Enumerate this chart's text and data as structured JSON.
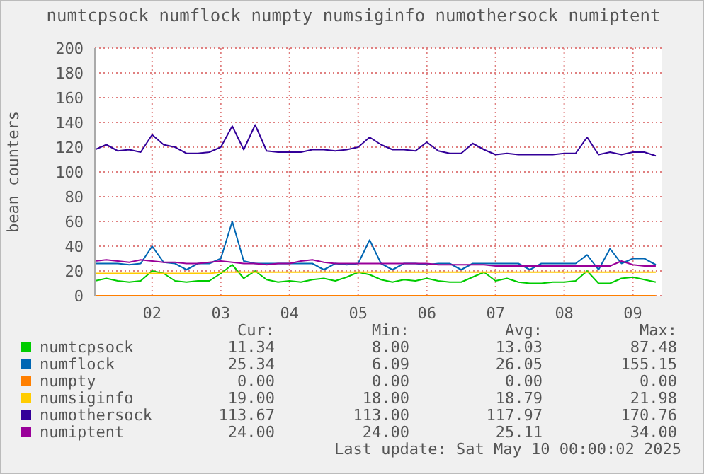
{
  "chart_data": {
    "type": "line",
    "title": "numtcpsock numflock numpty numsiginfo numothersock numiptent",
    "ylabel": "bean counters",
    "x": [
      "2025-05-01T04:00",
      "2025-05-01T08:00",
      "2025-05-01T12:00",
      "2025-05-01T16:00",
      "2025-05-01T20:00",
      "2025-05-02T00:00",
      "2025-05-02T04:00",
      "2025-05-02T08:00",
      "2025-05-02T12:00",
      "2025-05-02T16:00",
      "2025-05-02T20:00",
      "2025-05-03T00:00",
      "2025-05-03T04:00",
      "2025-05-03T08:00",
      "2025-05-03T12:00",
      "2025-05-03T16:00",
      "2025-05-03T20:00",
      "2025-05-04T00:00",
      "2025-05-04T04:00",
      "2025-05-04T08:00",
      "2025-05-04T12:00",
      "2025-05-04T16:00",
      "2025-05-04T20:00",
      "2025-05-05T00:00",
      "2025-05-05T04:00",
      "2025-05-05T08:00",
      "2025-05-05T12:00",
      "2025-05-05T16:00",
      "2025-05-05T20:00",
      "2025-05-06T00:00",
      "2025-05-06T04:00",
      "2025-05-06T08:00",
      "2025-05-06T12:00",
      "2025-05-06T16:00",
      "2025-05-06T20:00",
      "2025-05-07T00:00",
      "2025-05-07T04:00",
      "2025-05-07T08:00",
      "2025-05-07T12:00",
      "2025-05-07T16:00",
      "2025-05-07T20:00",
      "2025-05-08T00:00",
      "2025-05-08T04:00",
      "2025-05-08T08:00",
      "2025-05-08T12:00",
      "2025-05-08T16:00",
      "2025-05-08T20:00",
      "2025-05-09T00:00",
      "2025-05-09T04:00",
      "2025-05-09T08:00"
    ],
    "series": [
      {
        "name": "numtcpsock",
        "color": "#00cc00",
        "values": [
          12,
          14,
          12,
          11,
          12,
          20,
          18,
          12,
          11,
          12,
          12,
          18,
          25,
          14,
          20,
          13,
          11,
          12,
          11,
          13,
          14,
          12,
          15,
          19,
          17,
          13,
          11,
          13,
          12,
          14,
          12,
          11,
          11,
          15,
          19,
          12,
          14,
          11,
          10,
          10,
          11,
          11,
          12,
          20,
          10,
          10,
          14,
          15,
          13,
          11
        ]
      },
      {
        "name": "numflock",
        "color": "#0066b3",
        "values": [
          26,
          26,
          26,
          25,
          26,
          40,
          27,
          26,
          21,
          26,
          26,
          30,
          60,
          28,
          26,
          26,
          26,
          26,
          26,
          26,
          21,
          26,
          25,
          26,
          45,
          26,
          21,
          26,
          26,
          25,
          26,
          26,
          21,
          26,
          26,
          26,
          26,
          26,
          21,
          26,
          26,
          26,
          26,
          33,
          21,
          38,
          26,
          30,
          30,
          25
        ]
      },
      {
        "name": "numpty",
        "color": "#ff7f00",
        "values": [
          0,
          0,
          0,
          0,
          0,
          0,
          0,
          0,
          0,
          0,
          0,
          0,
          0,
          0,
          0,
          0,
          0,
          0,
          0,
          0,
          0,
          0,
          0,
          0,
          0,
          0,
          0,
          0,
          0,
          0,
          0,
          0,
          0,
          0,
          0,
          0,
          0,
          0,
          0,
          0,
          0,
          0,
          0,
          0,
          0,
          0,
          0,
          0,
          0,
          0
        ]
      },
      {
        "name": "numsiginfo",
        "color": "#ffcc00",
        "values": [
          18,
          18,
          18,
          18,
          18,
          18,
          18,
          18,
          18,
          18,
          18,
          19,
          19,
          19,
          19,
          19,
          19,
          19,
          19,
          19,
          19,
          19,
          19,
          19,
          19,
          19,
          19,
          19,
          19,
          19,
          19,
          19,
          19,
          19,
          19,
          19,
          19,
          19,
          19,
          19,
          19,
          19,
          19,
          19,
          19,
          19,
          19,
          19,
          19,
          19
        ]
      },
      {
        "name": "numothersock",
        "color": "#330099",
        "values": [
          118,
          122,
          117,
          118,
          116,
          130,
          122,
          120,
          115,
          115,
          116,
          120,
          137,
          118,
          138,
          117,
          116,
          116,
          116,
          118,
          118,
          117,
          118,
          120,
          128,
          122,
          118,
          118,
          117,
          124,
          117,
          115,
          115,
          123,
          118,
          114,
          115,
          114,
          114,
          114,
          114,
          115,
          115,
          128,
          114,
          116,
          114,
          116,
          116,
          113
        ]
      },
      {
        "name": "numiptent",
        "color": "#990099",
        "values": [
          28,
          29,
          28,
          27,
          29,
          28,
          27,
          27,
          26,
          26,
          27,
          28,
          27,
          26,
          26,
          25,
          26,
          26,
          28,
          29,
          27,
          26,
          26,
          26,
          26,
          26,
          26,
          26,
          26,
          26,
          25,
          25,
          25,
          25,
          25,
          24,
          24,
          24,
          24,
          24,
          24,
          24,
          24,
          24,
          24,
          24,
          28,
          25,
          24,
          24
        ]
      }
    ],
    "xlim": [
      "2025-05-01T04:00",
      "2025-05-09T10:00"
    ],
    "xticks": [
      {
        "value": "2025-05-02T00:00",
        "label": "02"
      },
      {
        "value": "2025-05-03T00:00",
        "label": "03"
      },
      {
        "value": "2025-05-04T00:00",
        "label": "04"
      },
      {
        "value": "2025-05-05T00:00",
        "label": "05"
      },
      {
        "value": "2025-05-06T00:00",
        "label": "06"
      },
      {
        "value": "2025-05-07T00:00",
        "label": "07"
      },
      {
        "value": "2025-05-08T00:00",
        "label": "08"
      },
      {
        "value": "2025-05-09T00:00",
        "label": "09"
      }
    ],
    "ylim": [
      0,
      200
    ],
    "yticks": [
      0,
      20,
      40,
      60,
      80,
      100,
      120,
      140,
      160,
      180,
      200
    ],
    "grid": true,
    "legend": "bottom",
    "annotations": [
      "Cur:",
      "Min:",
      "Avg:",
      "Max:",
      "11.34",
      "8.00",
      "13.03",
      "87.48",
      "25.34",
      "6.09",
      "26.05",
      "155.15",
      "0.00",
      "0.00",
      "0.00",
      "0.00",
      "19.00",
      "18.00",
      "18.79",
      "21.98",
      "113.67",
      "113.00",
      "117.97",
      "170.76",
      "24.00",
      "24.00",
      "25.11",
      "34.00",
      "Last update: Sat May 10 00:00:02 2025"
    ]
  }
}
